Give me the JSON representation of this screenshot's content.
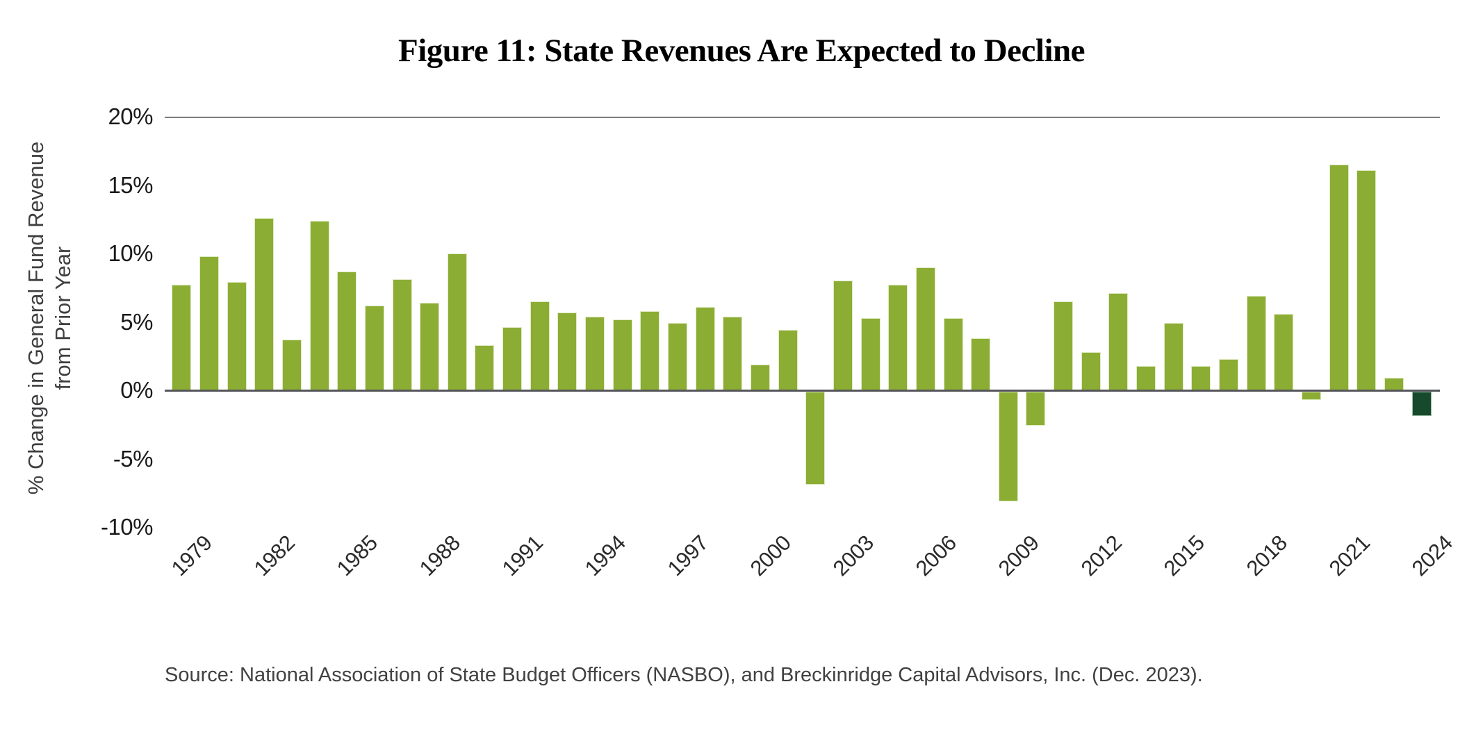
{
  "title": "Figure 11: State Revenues Are Expected to Decline",
  "y_axis": {
    "label_line1": "% Change in General Fund Revenue",
    "label_line2": "from Prior Year"
  },
  "source": "Source: National Association of State Budget Officers (NASBO), and Breckinridge Capital Advisors, Inc. (Dec. 2023).",
  "colors": {
    "bar_green": "#8BAD33",
    "bar_dark_green": "#17492D",
    "zero_axis_line": "#55565A",
    "top_gridline": "#7D7D7D"
  },
  "chart_data": {
    "type": "bar",
    "title": "Figure 11: State Revenues Are Expected to Decline",
    "xlabel": "",
    "ylabel": "% Change in General Fund Revenue from Prior Year",
    "ylim": [
      -10,
      20
    ],
    "grid": "horizontal lines at 20% and 0% only",
    "legend_position": "none",
    "y_ticks": [
      "20%",
      "15%",
      "10%",
      "5%",
      "0%",
      "-5%",
      "-10%"
    ],
    "x_tick_labels": [
      "1979",
      "1982",
      "1985",
      "1988",
      "1991",
      "1994",
      "1997",
      "2000",
      "2003",
      "2006",
      "2009",
      "2012",
      "2015",
      "2018",
      "2021",
      "2024"
    ],
    "categories": [
      1979,
      1980,
      1981,
      1982,
      1983,
      1984,
      1985,
      1986,
      1987,
      1988,
      1989,
      1990,
      1991,
      1992,
      1993,
      1994,
      1995,
      1996,
      1997,
      1998,
      1999,
      2000,
      2001,
      2002,
      2003,
      2004,
      2005,
      2006,
      2007,
      2008,
      2009,
      2010,
      2011,
      2012,
      2013,
      2014,
      2015,
      2016,
      2017,
      2018,
      2019,
      2020,
      2021,
      2022,
      2023,
      2024
    ],
    "values": [
      7.7,
      9.8,
      7.9,
      12.6,
      3.7,
      12.4,
      8.7,
      6.2,
      8.1,
      6.4,
      10.0,
      3.3,
      4.6,
      6.5,
      5.7,
      5.4,
      5.2,
      5.8,
      4.9,
      6.1,
      5.4,
      1.9,
      4.4,
      -6.8,
      8.0,
      5.3,
      7.7,
      9.0,
      5.3,
      3.8,
      -8.0,
      -2.5,
      6.5,
      2.8,
      7.1,
      1.8,
      4.9,
      1.8,
      2.3,
      6.9,
      5.6,
      -0.6,
      16.5,
      16.1,
      0.9,
      -1.8
    ],
    "highlight_year": 2024,
    "highlight_meaning": "projected decline shown in dark green"
  }
}
